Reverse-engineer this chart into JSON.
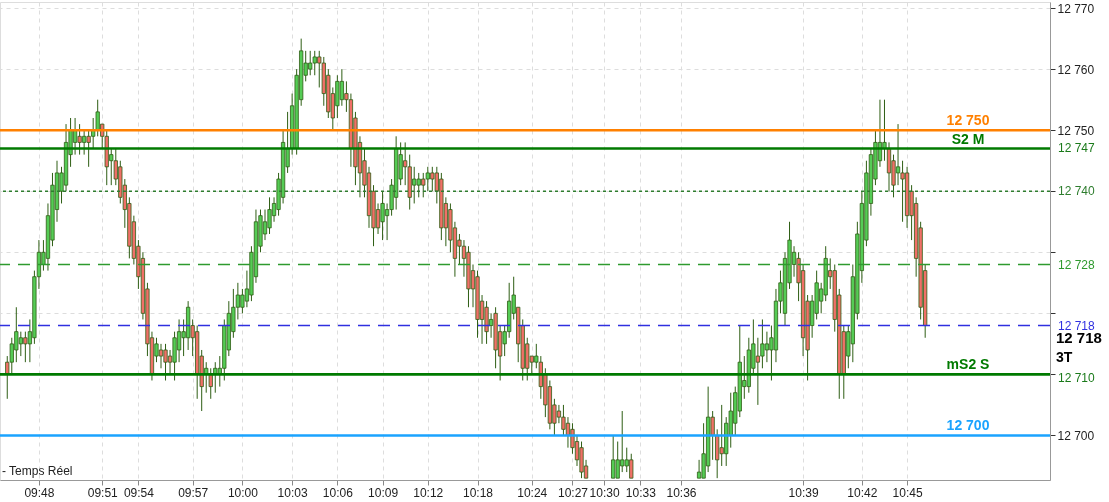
{
  "chart_data": {
    "type": "candlestick",
    "categories": [
      null,
      null,
      null,
      null,
      null,
      null,
      null,
      "09:48",
      null,
      null,
      null,
      null,
      null,
      null,
      null,
      null,
      null,
      null,
      null,
      null,
      null,
      "09:51",
      null,
      null,
      null,
      null,
      null,
      null,
      null,
      "09:54",
      null,
      null,
      null,
      null,
      null,
      null,
      null,
      null,
      null,
      null,
      null,
      "09:57",
      null,
      null,
      null,
      null,
      null,
      null,
      null,
      null,
      null,
      null,
      "10:00",
      null,
      null,
      null,
      null,
      null,
      null,
      null,
      null,
      null,
      null,
      "10:03",
      null,
      null,
      null,
      null,
      null,
      null,
      null,
      null,
      null,
      "10:06",
      null,
      null,
      null,
      null,
      null,
      null,
      null,
      null,
      null,
      "10:09",
      null,
      null,
      null,
      null,
      null,
      null,
      null,
      null,
      null,
      "10:12",
      null,
      null,
      null,
      null,
      null,
      null,
      null,
      null,
      null,
      null,
      "10:18",
      null,
      null,
      null,
      null,
      null,
      null,
      null,
      null,
      null,
      null,
      null,
      "10:24",
      null,
      null,
      null,
      null,
      null,
      null,
      null,
      null,
      "10:27",
      null,
      null,
      null,
      null,
      null,
      null,
      "10:30",
      null,
      null,
      null,
      null,
      null,
      null,
      null,
      "10:33",
      null,
      null,
      null,
      null,
      null,
      null,
      null,
      null,
      "10:36",
      null,
      null,
      null,
      null,
      null,
      null,
      null,
      null,
      null,
      null,
      null,
      null,
      null,
      null,
      null,
      null,
      null,
      null,
      null,
      null,
      null,
      null,
      null,
      null,
      null,
      null,
      "10:39",
      null,
      null,
      null,
      null,
      null,
      null,
      null,
      null,
      null,
      null,
      null,
      null,
      "10:42",
      null,
      null,
      null,
      null,
      null,
      null,
      null,
      null,
      null,
      "10:45",
      null,
      null,
      null,
      null,
      null,
      null,
      null,
      null,
      null,
      null,
      null,
      null,
      null,
      null,
      null,
      null,
      null,
      null,
      null,
      null,
      null,
      null,
      null,
      null,
      null,
      null,
      null,
      null,
      null,
      null
    ],
    "ohlc": [
      [
        12712,
        12713,
        12706,
        12710
      ],
      [
        12712,
        12716,
        12710,
        12715
      ],
      [
        12714,
        12721,
        12712,
        12717
      ],
      [
        12715,
        12717,
        12713,
        12716
      ],
      [
        12716,
        12717,
        12712,
        12715
      ],
      [
        12715,
        12719,
        12712,
        12717
      ],
      [
        12716,
        12727,
        12715,
        12726
      ],
      [
        12726,
        12732,
        12724,
        12730
      ],
      [
        12728,
        12732,
        12727,
        12730
      ],
      [
        12729,
        12738,
        12727,
        12736
      ],
      [
        12732,
        12743,
        12731,
        12741
      ],
      [
        12737,
        12745,
        12735,
        12743
      ],
      [
        12740,
        12744,
        12738,
        12743
      ],
      [
        12741,
        12751,
        12740,
        12748
      ],
      [
        12746,
        12752,
        12744,
        12750
      ],
      [
        12748,
        12752,
        12746,
        12750
      ],
      [
        12749,
        12751,
        12746,
        12748
      ],
      [
        12748,
        12750,
        12746,
        12749
      ],
      [
        12749,
        12750,
        12744,
        12748
      ],
      [
        12749,
        12752,
        12747,
        12750
      ],
      [
        12750,
        12755,
        12749,
        12753
      ],
      [
        12751,
        12751,
        12747,
        12749
      ],
      [
        12749,
        12750,
        12741,
        12744
      ],
      [
        12745,
        12747,
        12741,
        12746
      ],
      [
        12745,
        12747,
        12741,
        12742
      ],
      [
        12744,
        12745,
        12738,
        12739
      ],
      [
        12741,
        12742,
        12734,
        12737
      ],
      [
        12738,
        12739,
        12729,
        12731
      ],
      [
        12735,
        12736,
        12728,
        12729
      ],
      [
        12731,
        12732,
        12724,
        12726
      ],
      [
        12729,
        12730,
        12719,
        12720
      ],
      [
        12724,
        12725,
        12713,
        12715
      ],
      [
        12716,
        12717,
        12709,
        12710
      ],
      [
        12713,
        12716,
        12712,
        12715
      ],
      [
        12714,
        12715,
        12711,
        12713
      ],
      [
        12714,
        12715,
        12709,
        12712
      ],
      [
        12713,
        12714,
        12710,
        12712
      ],
      [
        12712,
        12717,
        12709,
        12716
      ],
      [
        12714,
        12719,
        12712,
        12717
      ],
      [
        12716,
        12719,
        12713,
        12717
      ],
      [
        12716,
        12722,
        12714,
        12721
      ],
      [
        12718,
        12719,
        12713,
        12716
      ],
      [
        12717,
        12718,
        12706,
        12710
      ],
      [
        12713,
        12714,
        12704,
        12708
      ],
      [
        12710,
        12712,
        12707,
        12711
      ],
      [
        12710,
        12711,
        12706,
        12708
      ],
      [
        12710,
        12712,
        12707,
        12711
      ],
      [
        12710,
        12713,
        12708,
        12711
      ],
      [
        12711,
        12719,
        12709,
        12718
      ],
      [
        12714,
        12722,
        12713,
        12720
      ],
      [
        12717,
        12724,
        12716,
        12721
      ],
      [
        12721,
        12725,
        12719,
        12723
      ],
      [
        12721,
        12724,
        12720,
        12723
      ],
      [
        12722,
        12727,
        12721,
        12724
      ],
      [
        12723,
        12731,
        12722,
        12730
      ],
      [
        12726,
        12737,
        12725,
        12735
      ],
      [
        12731,
        12737,
        12730,
        12736
      ],
      [
        12733,
        12737,
        12732,
        12735
      ],
      [
        12734,
        12739,
        12733,
        12737
      ],
      [
        12736,
        12739,
        12735,
        12738
      ],
      [
        12737,
        12743,
        12736,
        12742
      ],
      [
        12739,
        12750,
        12738,
        12748
      ],
      [
        12744,
        12753,
        12743,
        12747
      ],
      [
        12747,
        12756,
        12746,
        12754
      ],
      [
        12747,
        12760,
        12746,
        12759
      ],
      [
        12755,
        12765,
        12754,
        12763
      ],
      [
        12759,
        12763,
        12758,
        12761
      ],
      [
        12760,
        12763,
        12759,
        12761
      ],
      [
        12761,
        12763,
        12759,
        12762
      ],
      [
        12762,
        12763,
        12757,
        12761
      ],
      [
        12761,
        12762,
        12754,
        12756
      ],
      [
        12759,
        12760,
        12752,
        12753
      ],
      [
        12756,
        12757,
        12750,
        12752
      ],
      [
        12754,
        12759,
        12752,
        12758
      ],
      [
        12755,
        12760,
        12754,
        12758
      ],
      [
        12756,
        12758,
        12753,
        12755
      ],
      [
        12755,
        12756,
        12744,
        12747
      ],
      [
        12752,
        12753,
        12741,
        12744
      ],
      [
        12748,
        12749,
        12739,
        12743
      ],
      [
        12745,
        12747,
        12739,
        12741
      ],
      [
        12743,
        12744,
        12734,
        12736
      ],
      [
        12740,
        12741,
        12731,
        12734
      ],
      [
        12737,
        12738,
        12733,
        12734
      ],
      [
        12735,
        12740,
        12732,
        12738
      ],
      [
        12736,
        12738,
        12732,
        12737
      ],
      [
        12737,
        12742,
        12736,
        12741
      ],
      [
        12739,
        12749,
        12737,
        12747
      ],
      [
        12742,
        12748,
        12741,
        12746
      ],
      [
        12745,
        12748,
        12741,
        12744
      ],
      [
        12744,
        12746,
        12737,
        12739
      ],
      [
        12741,
        12744,
        12738,
        12742
      ],
      [
        12741,
        12743,
        12739,
        12742
      ],
      [
        12742,
        12743,
        12739,
        12741
      ],
      [
        12742,
        12744,
        12740,
        12743
      ],
      [
        12743,
        12744,
        12740,
        12742
      ],
      [
        12743,
        12744,
        12738,
        12740
      ],
      [
        12742,
        12743,
        12732,
        12734
      ],
      [
        12738,
        12739,
        12731,
        12734
      ],
      [
        12737,
        12738,
        12730,
        12732
      ],
      [
        12734,
        12735,
        12726,
        12729
      ],
      [
        12732,
        12733,
        12728,
        12731
      ],
      [
        12731,
        12732,
        12726,
        12729
      ],
      [
        12730,
        12731,
        12721,
        12724
      ],
      [
        12727,
        12728,
        12721,
        12724
      ],
      [
        12726,
        12727,
        12716,
        12719
      ],
      [
        12722,
        12723,
        12715,
        12719
      ],
      [
        12721,
        12722,
        12715,
        12717
      ],
      [
        12718,
        12720,
        12716,
        12719
      ],
      [
        12720,
        12721,
        12711,
        12714
      ],
      [
        12717,
        12718,
        12709,
        12713
      ],
      [
        12715,
        12718,
        12713,
        12717
      ],
      [
        12717,
        12725,
        12716,
        12722
      ],
      [
        12720,
        12726,
        12719,
        12723
      ],
      [
        12721,
        12721,
        12712,
        12715
      ],
      [
        12718,
        12719,
        12709,
        12711
      ],
      [
        12715,
        12716,
        12709,
        12711
      ],
      [
        12713,
        12713,
        12710,
        12712
      ],
      [
        12712,
        12715,
        12711,
        12713
      ],
      [
        12712,
        12713,
        12706,
        12708
      ],
      [
        12710,
        12711,
        12703,
        12705
      ],
      [
        12708,
        12709,
        12701,
        12702
      ],
      [
        12705,
        12706,
        12700,
        12702
      ],
      [
        12704,
        12705,
        12702,
        12703
      ],
      [
        12703,
        12705,
        12700,
        12701
      ],
      [
        12702,
        12703,
        12698,
        12700
      ],
      [
        12701,
        12702,
        12697,
        12698
      ],
      [
        12699,
        12700,
        12695,
        12696
      ],
      [
        12698,
        12699,
        12693,
        12694
      ],
      [
        12695,
        12696,
        12693,
        12693
      ],
      null,
      null,
      null,
      null,
      null,
      [
        12693,
        12700,
        12693,
        12696
      ],
      [
        12693,
        12699,
        12693,
        12696
      ],
      [
        12695,
        12704,
        12694,
        12696
      ],
      [
        12695,
        12698,
        12694,
        12696
      ],
      [
        12696,
        12697,
        12693,
        12693
      ],
      null,
      null,
      null,
      null,
      null,
      null,
      null,
      null,
      null,
      null,
      null,
      null,
      null,
      null,
      [
        12693,
        12696,
        12693,
        12694
      ],
      [
        12693,
        12702,
        12693,
        12697
      ],
      [
        12695,
        12708,
        12694,
        12703
      ],
      [
        12703,
        12704,
        12696,
        12700
      ],
      [
        12700,
        12701,
        12693,
        12696
      ],
      [
        12698,
        12705,
        12695,
        12697
      ],
      [
        12697,
        12703,
        12695,
        12702
      ],
      [
        12700,
        12707,
        12698,
        12704
      ],
      [
        12702,
        12708,
        12700,
        12707
      ],
      [
        12704,
        12718,
        12703,
        12712
      ],
      [
        12708,
        12713,
        12706,
        12709
      ],
      [
        12708,
        12716,
        12707,
        12714
      ],
      [
        12711,
        12719,
        12710,
        12715
      ],
      [
        12713,
        12716,
        12705,
        12712
      ],
      [
        12713,
        12719,
        12711,
        12715
      ],
      [
        12714,
        12717,
        12712,
        12715
      ],
      [
        12714,
        12718,
        12709,
        12716
      ],
      [
        12714,
        12724,
        12712,
        12722
      ],
      [
        12722,
        12727,
        12720,
        12725
      ],
      [
        12720,
        12730,
        12718,
        12729
      ],
      [
        12725,
        12735,
        12724,
        12732
      ],
      [
        12728,
        12731,
        12726,
        12730
      ],
      [
        12729,
        12730,
        12722,
        12725
      ],
      [
        12727,
        12728,
        12713,
        12716
      ],
      [
        12722,
        12723,
        12709,
        12714
      ],
      [
        12718,
        12723,
        12716,
        12722
      ],
      [
        12720,
        12727,
        12719,
        12725
      ],
      [
        12722,
        12725,
        12720,
        12724
      ],
      [
        12723,
        12731,
        12722,
        12729
      ],
      [
        12727,
        12729,
        12724,
        12726
      ],
      [
        12727,
        12728,
        12717,
        12719
      ],
      [
        12723,
        12724,
        12706,
        12710
      ],
      [
        12717,
        12718,
        12706,
        12710
      ],
      [
        12713,
        12718,
        12711,
        12717
      ],
      [
        12715,
        12728,
        12712,
        12726
      ],
      [
        12720,
        12735,
        12719,
        12733
      ],
      [
        12727,
        12740,
        12725,
        12738
      ],
      [
        12732,
        12745,
        12731,
        12743
      ],
      [
        12738,
        12747,
        12736,
        12746
      ],
      [
        12742,
        12750,
        12741,
        12748
      ],
      [
        12745,
        12755,
        12744,
        12748
      ],
      [
        12747,
        12755,
        12745,
        12748
      ],
      [
        12747,
        12748,
        12740,
        12743
      ],
      [
        12745,
        12746,
        12739,
        12741
      ],
      [
        12743,
        12751,
        12741,
        12744
      ],
      [
        12743,
        12745,
        12735,
        12742
      ],
      [
        12743,
        12744,
        12734,
        12736
      ],
      [
        12740,
        12741,
        12732,
        12736
      ],
      [
        12738,
        12739,
        12726,
        12729
      ],
      [
        12734,
        12735,
        12719,
        12721
      ],
      [
        12727,
        12728,
        12716,
        12718
      ],
      null,
      null,
      null,
      null,
      null,
      null,
      null,
      null,
      null,
      null,
      null,
      null,
      null,
      null,
      null,
      null,
      null,
      null,
      null,
      null,
      null,
      null,
      null,
      null,
      null,
      null
    ],
    "ylim": [
      12692.7,
      12771
    ],
    "yticks": [
      {
        "value": 12700,
        "label": "12 700"
      },
      {
        "value": 12710,
        "label": null
      },
      {
        "value": 12720,
        "label": null
      },
      {
        "value": 12730,
        "label": null
      },
      {
        "value": 12740,
        "label": null
      },
      {
        "value": 12750,
        "label": "12 750"
      },
      {
        "value": 12760,
        "label": "12 760"
      },
      {
        "value": 12770,
        "label": "12 770"
      }
    ],
    "grid": true,
    "ref_lines": [
      {
        "axis": "y",
        "value": 12750,
        "label": "12 750",
        "color": "#ff8000",
        "line_style": "solid"
      },
      {
        "axis": "y",
        "value": 12747,
        "label": "S2 M",
        "color": "#007a00",
        "line_style": "solid"
      },
      {
        "axis": "y",
        "value": 12740,
        "label": "12 740",
        "color": "#2e7d2e",
        "line_style": "dotted"
      },
      {
        "axis": "y",
        "value": 12728,
        "label": "12 728",
        "color": "#2e9a2e",
        "line_style": "dashed"
      },
      {
        "axis": "y",
        "value": 12718,
        "label": "12 718",
        "color": "#3030e0",
        "line_style": "dashed"
      },
      {
        "axis": "y",
        "value": 12710,
        "label": "mS2 S",
        "color": "#007a00",
        "line_style": "solid"
      },
      {
        "axis": "y",
        "value": 12700,
        "label": "12 700",
        "color": "#1aa3ff",
        "line_style": "solid"
      }
    ],
    "annotations": [
      "12 747",
      "12 710",
      "12 718",
      "3T",
      "- Temps Réel"
    ]
  }
}
